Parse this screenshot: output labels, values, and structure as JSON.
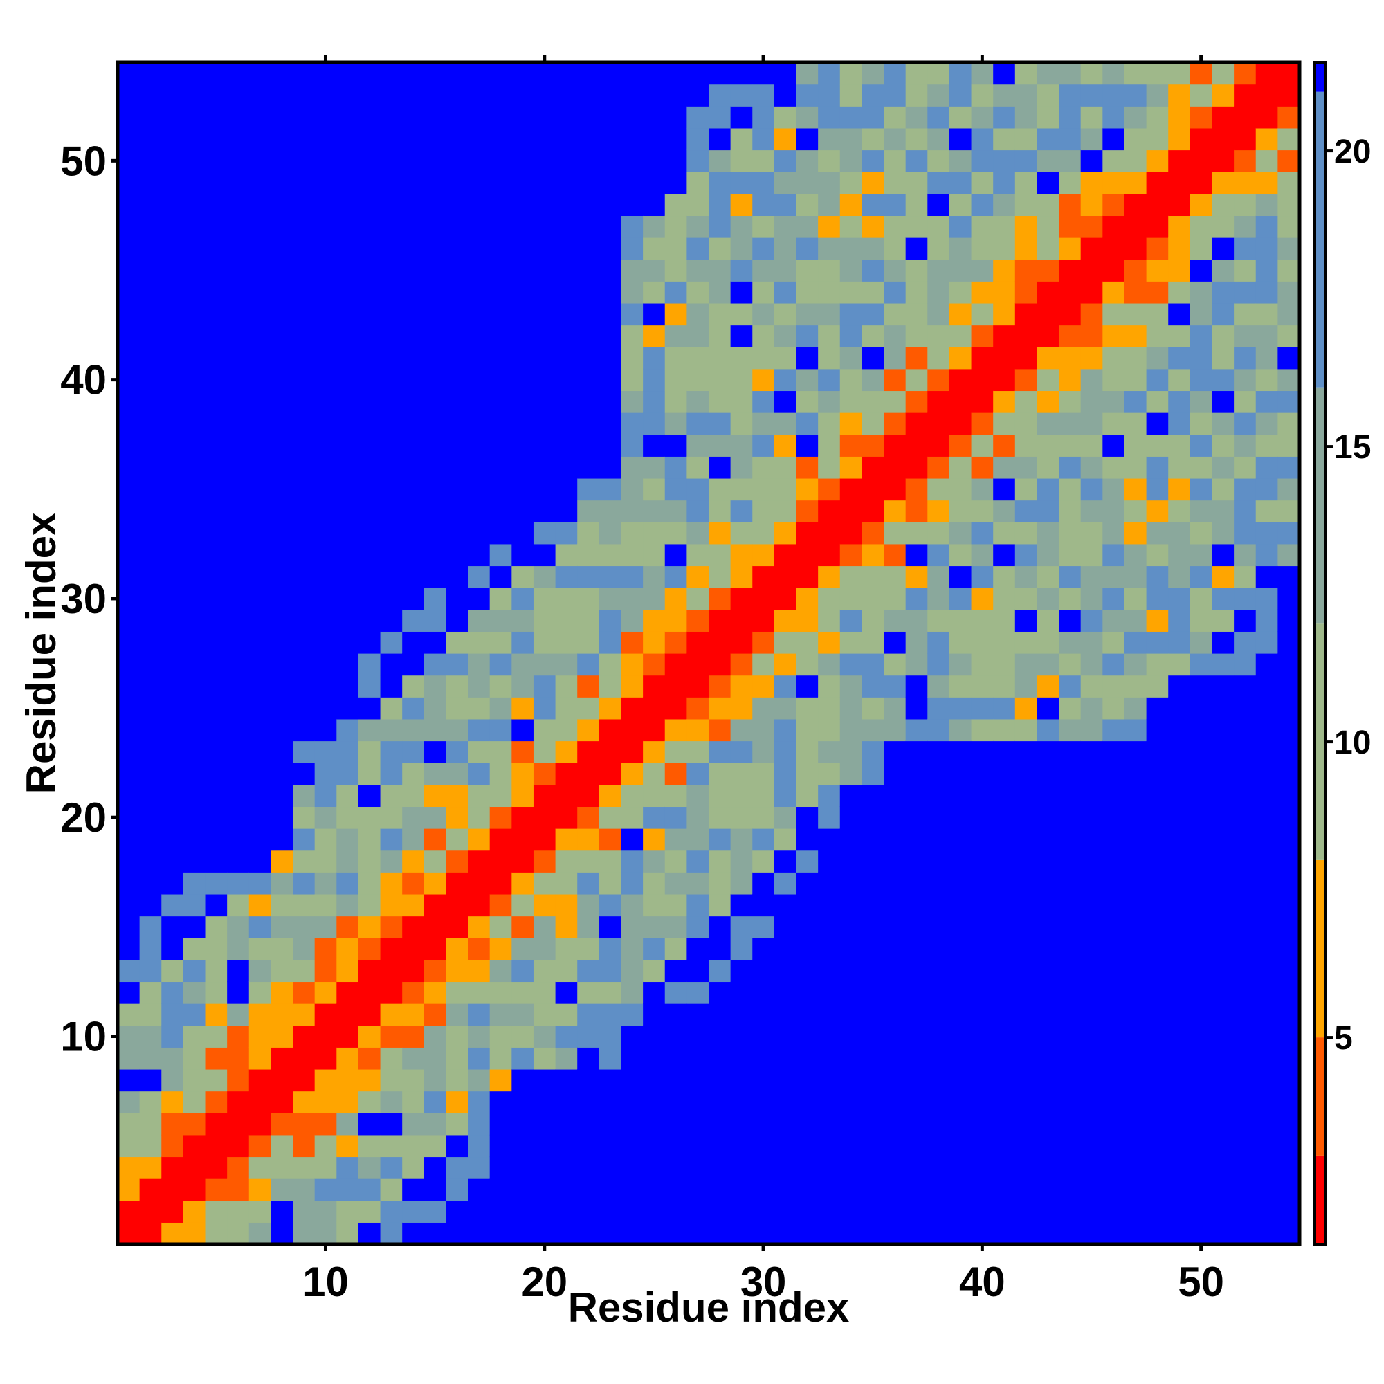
{
  "chart_data": {
    "type": "heatmap",
    "title": "",
    "xlabel": "Residue index",
    "ylabel": "Residue index",
    "n": 54,
    "x_range": [
      1,
      54
    ],
    "y_range": [
      1,
      54
    ],
    "x_ticks": [
      10,
      20,
      30,
      40,
      50
    ],
    "y_ticks": [
      10,
      20,
      30,
      40,
      50
    ],
    "colorbar": {
      "range": [
        1.5,
        21.5
      ],
      "ticks": [
        5,
        10,
        15,
        20
      ],
      "colors": {
        "band_0_3": "#ff0000",
        "band_3_5": "#ff5a00",
        "band_5_8": "#ffa500",
        "band_8_12": "#9fb88a",
        "band_12_16": "#8aa89c",
        "band_16_21": "#5f8fc6",
        "above_21": "#0000ff"
      }
    },
    "value_model": "distance between residues i and j (Å); ~3.8 for adjacent residues, saturating at >21 (blue) far from the diagonal",
    "diagonal_band_halfwidth": 1,
    "near_band_halfwidth": 4,
    "mid_band_halfwidth": 12
  }
}
